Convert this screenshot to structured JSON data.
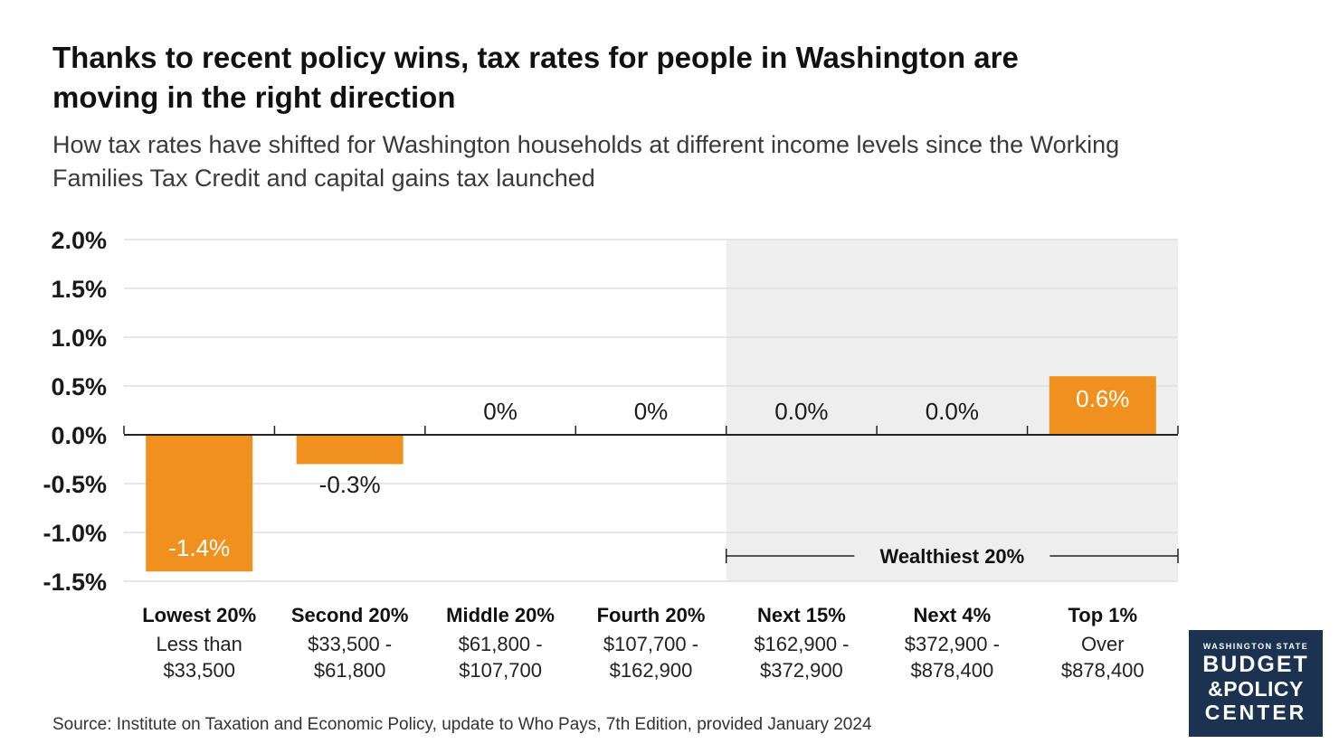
{
  "title": "Thanks to recent policy wins, tax rates for people in Washington are moving in the right direction",
  "subtitle": "How tax rates have shifted for Washington households at different income levels since the Working Families Tax Credit and capital gains tax launched",
  "source": "Source: Institute on Taxation and Economic Policy, update to Who Pays, 7th Edition, provided January 2024",
  "logo": {
    "line1": "WASHINGTON STATE",
    "line2": "BUDGET",
    "line3": "&POLICY",
    "line4": "CENTER",
    "background": "#1b3350"
  },
  "colors": {
    "bar": "#f0901e",
    "highlight_band": "#eeeeee",
    "gridline": "#dddddd",
    "axis": "#222222",
    "logo_bg": "#1b3350"
  },
  "chart_data": {
    "type": "bar",
    "title": "",
    "xlabel": "",
    "ylabel": "",
    "ylim": [
      -1.5,
      2.0
    ],
    "yticks": [
      2.0,
      1.5,
      1.0,
      0.5,
      0.0,
      -0.5,
      -1.0,
      -1.5
    ],
    "ytick_labels": [
      "2.0%",
      "1.5%",
      "1.0%",
      "0.5%",
      "0.0%",
      "-0.5%",
      "-1.0%",
      "-1.5%"
    ],
    "grid": true,
    "categories": [
      {
        "name": "Lowest 20%",
        "range_line1": "Less than",
        "range_line2": "$33,500"
      },
      {
        "name": "Second 20%",
        "range_line1": "$33,500 -",
        "range_line2": "$61,800"
      },
      {
        "name": "Middle 20%",
        "range_line1": "$61,800 -",
        "range_line2": "$107,700"
      },
      {
        "name": "Fourth 20%",
        "range_line1": "$107,700 -",
        "range_line2": "$162,900"
      },
      {
        "name": "Next 15%",
        "range_line1": "$162,900 -",
        "range_line2": "$372,900"
      },
      {
        "name": "Next 4%",
        "range_line1": "$372,900 -",
        "range_line2": "$878,400"
      },
      {
        "name": "Top 1%",
        "range_line1": "Over",
        "range_line2": "$878,400"
      }
    ],
    "values": [
      -1.4,
      -0.3,
      0.0,
      0.0,
      0.0,
      0.0,
      0.6
    ],
    "data_labels": [
      "-1.4%",
      "-0.3%",
      "0%",
      "0%",
      "0.0%",
      "0.0%",
      "0.6%"
    ],
    "highlight_group": {
      "label": "Wealthiest 20%",
      "start_index": 4,
      "end_index": 6
    }
  }
}
